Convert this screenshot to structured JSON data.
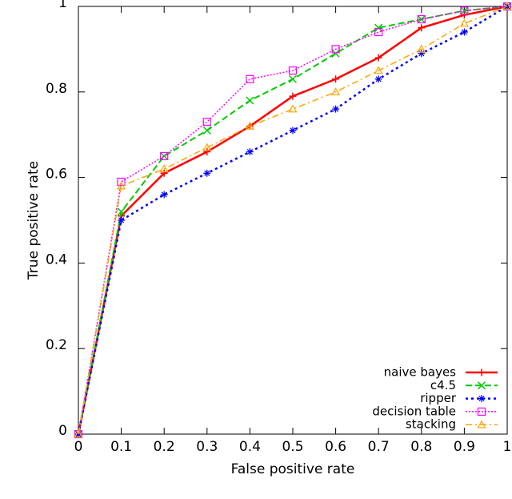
{
  "chart_data": {
    "type": "line",
    "x_label": "False positive rate",
    "y_label": "True positive rate",
    "x": [
      0,
      0.1,
      0.2,
      0.3,
      0.4,
      0.5,
      0.6,
      0.7,
      0.8,
      0.9,
      1
    ],
    "series": [
      {
        "name": "naive bayes",
        "color": "#ff0000",
        "values": [
          0,
          0.51,
          0.61,
          0.66,
          0.72,
          0.79,
          0.83,
          0.88,
          0.95,
          0.98,
          1
        ]
      },
      {
        "name": "c4.5",
        "color": "#00cc00",
        "values": [
          0,
          0.52,
          0.65,
          0.71,
          0.78,
          0.83,
          0.89,
          0.95,
          0.97,
          0.99,
          1
        ]
      },
      {
        "name": "ripper",
        "color": "#0000ff",
        "values": [
          0,
          0.5,
          0.56,
          0.61,
          0.66,
          0.71,
          0.76,
          0.83,
          0.89,
          0.94,
          1
        ]
      },
      {
        "name": "decision table",
        "color": "#ff00ff",
        "values": [
          0,
          0.59,
          0.65,
          0.73,
          0.83,
          0.85,
          0.9,
          0.94,
          0.97,
          0.99,
          1
        ]
      },
      {
        "name": "stacking",
        "color": "#ffa500",
        "values": [
          0,
          0.58,
          0.62,
          0.67,
          0.72,
          0.76,
          0.8,
          0.85,
          0.9,
          0.96,
          1
        ]
      }
    ],
    "xlim": [
      0,
      1
    ],
    "ylim": [
      0,
      1
    ],
    "xticks": [
      0,
      0.1,
      0.2,
      0.3,
      0.4,
      0.5,
      0.6,
      0.7,
      0.8,
      0.9,
      1
    ],
    "yticks": [
      0,
      0.2,
      0.4,
      0.6,
      0.8,
      1
    ],
    "legend": "lower right"
  }
}
